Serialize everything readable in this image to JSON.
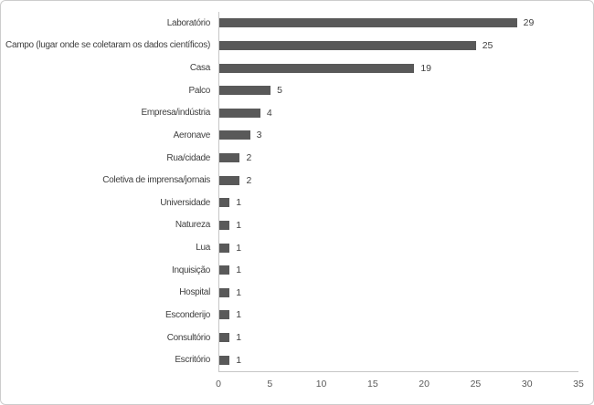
{
  "chart_data": {
    "type": "bar",
    "orientation": "horizontal",
    "title": "",
    "xlabel": "",
    "ylabel": "",
    "categories": [
      "Laboratório",
      "Campo (lugar onde se coletaram os dados científicos)",
      "Casa",
      "Palco",
      "Empresa/indústria",
      "Aeronave",
      "Rua/cidade",
      "Coletiva de imprensa/jornais",
      "Universidade",
      "Natureza",
      "Lua",
      "Inquisição",
      "Hospital",
      "Esconderijo",
      "Consultório",
      "Escritório"
    ],
    "values": [
      29,
      25,
      19,
      5,
      4,
      3,
      2,
      2,
      1,
      1,
      1,
      1,
      1,
      1,
      1,
      1
    ],
    "xlim": [
      0,
      35
    ],
    "xticks": [
      0,
      5,
      10,
      15,
      20,
      25,
      30,
      35
    ],
    "bar_color": "#595959",
    "axis_line_color": "#c6c6c6",
    "grid": false,
    "legend": false,
    "data_labels": true
  }
}
